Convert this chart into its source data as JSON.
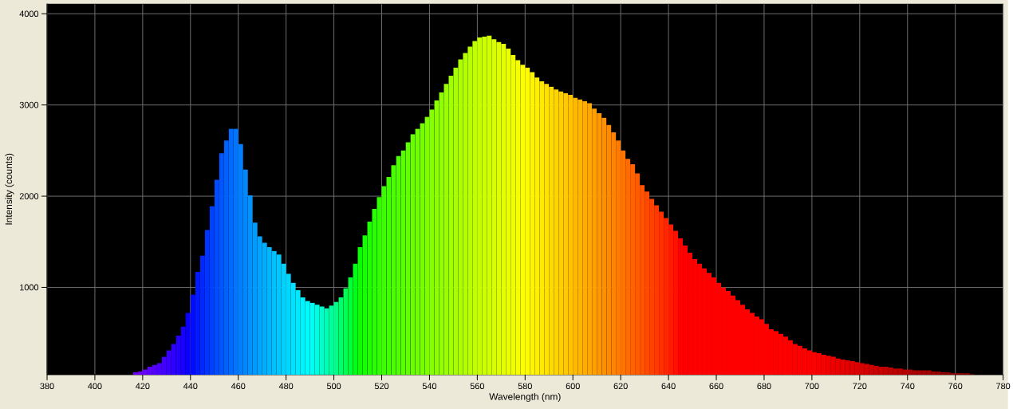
{
  "chart_data": {
    "type": "bar",
    "xlabel": "Wavelength (nm)",
    "ylabel": "Intensity (counts)",
    "x": [
      417,
      419,
      421,
      423,
      425,
      427,
      429,
      431,
      433,
      435,
      437,
      439,
      441,
      443,
      445,
      447,
      449,
      451,
      453,
      455,
      457,
      459,
      461,
      463,
      465,
      467,
      469,
      471,
      473,
      475,
      477,
      479,
      481,
      483,
      485,
      487,
      489,
      491,
      493,
      495,
      497,
      499,
      501,
      503,
      505,
      507,
      509,
      511,
      513,
      515,
      517,
      519,
      521,
      523,
      525,
      527,
      529,
      531,
      533,
      535,
      537,
      539,
      541,
      543,
      545,
      547,
      549,
      551,
      553,
      555,
      557,
      559,
      561,
      563,
      565,
      567,
      569,
      571,
      573,
      575,
      577,
      579,
      581,
      583,
      585,
      587,
      589,
      591,
      593,
      595,
      597,
      599,
      601,
      603,
      605,
      607,
      609,
      611,
      613,
      615,
      617,
      619,
      621,
      623,
      625,
      627,
      629,
      631,
      633,
      635,
      637,
      639,
      641,
      643,
      645,
      647,
      649,
      651,
      653,
      655,
      657,
      659,
      661,
      663,
      665,
      667,
      669,
      671,
      673,
      675,
      677,
      679,
      681,
      683,
      685,
      687,
      689,
      691,
      693,
      695,
      697,
      699,
      701,
      703,
      705,
      707,
      709,
      711,
      713,
      715,
      717,
      719,
      721,
      723,
      725,
      727,
      729,
      731,
      733,
      735,
      737,
      739,
      741,
      743,
      745,
      747,
      749,
      751,
      753,
      755,
      757,
      759,
      761,
      763,
      765,
      767
    ],
    "values": [
      70,
      80,
      100,
      130,
      150,
      170,
      240,
      310,
      380,
      470,
      570,
      720,
      920,
      1170,
      1350,
      1630,
      1890,
      2180,
      2470,
      2610,
      2740,
      2740,
      2570,
      2290,
      2010,
      1710,
      1560,
      1490,
      1440,
      1400,
      1360,
      1260,
      1150,
      1050,
      970,
      890,
      850,
      830,
      810,
      790,
      770,
      800,
      840,
      890,
      990,
      1110,
      1260,
      1440,
      1570,
      1720,
      1860,
      1990,
      2110,
      2210,
      2340,
      2440,
      2500,
      2590,
      2680,
      2740,
      2800,
      2870,
      2950,
      3050,
      3140,
      3230,
      3320,
      3410,
      3500,
      3570,
      3640,
      3700,
      3740,
      3750,
      3760,
      3720,
      3690,
      3670,
      3620,
      3550,
      3490,
      3440,
      3410,
      3360,
      3300,
      3260,
      3230,
      3200,
      3170,
      3150,
      3130,
      3110,
      3080,
      3060,
      3040,
      3020,
      2960,
      2910,
      2860,
      2780,
      2700,
      2610,
      2500,
      2410,
      2350,
      2250,
      2120,
      2050,
      1970,
      1900,
      1830,
      1760,
      1690,
      1620,
      1540,
      1460,
      1380,
      1310,
      1260,
      1210,
      1160,
      1110,
      1050,
      1000,
      960,
      910,
      860,
      810,
      760,
      720,
      680,
      650,
      600,
      540,
      520,
      490,
      460,
      420,
      380,
      360,
      330,
      310,
      290,
      280,
      260,
      250,
      240,
      220,
      210,
      200,
      190,
      180,
      170,
      160,
      150,
      140,
      130,
      130,
      120,
      110,
      110,
      100,
      100,
      90,
      90,
      90,
      90,
      80,
      80,
      70,
      70,
      60,
      60,
      60,
      60,
      50
    ],
    "colors": [
      "#7100F4",
      "#6C00FB",
      "#6600FF",
      "#5D00FF",
      "#5400FF",
      "#4B00FF",
      "#4200FF",
      "#3800FF",
      "#2E00FF",
      "#2300FF",
      "#1700FF",
      "#0A00FF",
      "#000BFF",
      "#001BFF",
      "#0028FF",
      "#0035FF",
      "#0041FF",
      "#004CFF",
      "#0057FF",
      "#0061FF",
      "#006BFF",
      "#0076FF",
      "#007FFF",
      "#0089FF",
      "#0092FF",
      "#009BFF",
      "#00A5FF",
      "#00AEFF",
      "#00B7FF",
      "#00BFFF",
      "#00C8FF",
      "#00D1FF",
      "#00D9FF",
      "#00E2FF",
      "#00EAFF",
      "#00F3FF",
      "#00FBFF",
      "#00FFF5",
      "#00FFE0",
      "#00FFCA",
      "#00FFB5",
      "#00FF9E",
      "#00FF87",
      "#00FF6E",
      "#00FF54",
      "#00FF38",
      "#00FF17",
      "#09FF00",
      "#15FF00",
      "#1FFF00",
      "#28FF00",
      "#31FF00",
      "#3AFF00",
      "#42FF00",
      "#4AFF00",
      "#52FF00",
      "#5AFF00",
      "#61FF00",
      "#69FF00",
      "#70FF00",
      "#77FF00",
      "#7EFF00",
      "#85FF00",
      "#8CFF00",
      "#92FF00",
      "#99FF00",
      "#A0FF00",
      "#A6FF00",
      "#ADFF00",
      "#B3FF00",
      "#B9FF00",
      "#BFFF00",
      "#C6FF00",
      "#CCFF00",
      "#D2FF00",
      "#D8FF00",
      "#DEFF00",
      "#E4FF00",
      "#EAFF00",
      "#F0FF00",
      "#F6FF00",
      "#FCFF00",
      "#FFFC00",
      "#FFF500",
      "#FFEF00",
      "#FFE900",
      "#FFE200",
      "#FFDC00",
      "#FFD500",
      "#FFCF00",
      "#FFC800",
      "#FFC100",
      "#FFBA00",
      "#FFB400",
      "#FFAD00",
      "#FFA600",
      "#FF9F00",
      "#FF9800",
      "#FF9100",
      "#FF8900",
      "#FF8200",
      "#FF7A00",
      "#FF7300",
      "#FF6B00",
      "#FF6300",
      "#FF5B00",
      "#FF5300",
      "#FF4A00",
      "#FF4200",
      "#FF3900",
      "#FF3000",
      "#FF2600",
      "#FF1B00",
      "#FF1000",
      "#FF0000",
      "#FF0000",
      "#FF0000",
      "#FF0000",
      "#FF0000",
      "#FF0000",
      "#FF0000",
      "#FF0000",
      "#FF0000",
      "#FF0000",
      "#FF0000",
      "#FF0000",
      "#FF0000",
      "#FF0000",
      "#FF0000",
      "#FF0000",
      "#FF0000",
      "#FF0000",
      "#FF0000",
      "#FF0000",
      "#FF0000",
      "#FF0000",
      "#FF0000",
      "#FF0000",
      "#FF0000",
      "#FF0000",
      "#FF0000",
      "#FF0000",
      "#FD0000",
      "#F90000",
      "#F60000",
      "#F20000",
      "#EF0000",
      "#EB0000",
      "#E70000",
      "#E40000",
      "#E00000",
      "#DC0000",
      "#D90000",
      "#D50000",
      "#D10000",
      "#CD0000",
      "#CA0000",
      "#C60000",
      "#C20000",
      "#BE0000",
      "#BA0000",
      "#B70000",
      "#B30000",
      "#AF0000",
      "#AB0000",
      "#A70000",
      "#A30000",
      "#9F0000",
      "#9B0000",
      "#970000",
      "#930000",
      "#8F0000",
      "#8A0000",
      "#860000",
      "#820000",
      "#7E0000"
    ],
    "xlim": [
      380,
      780
    ],
    "ylim": [
      43,
      4110
    ],
    "xticks": [
      380,
      400,
      420,
      440,
      460,
      480,
      500,
      520,
      540,
      560,
      580,
      600,
      620,
      640,
      660,
      680,
      700,
      720,
      740,
      760,
      780
    ],
    "yticks": [
      1000,
      2000,
      3000,
      4000
    ],
    "grid": true
  }
}
